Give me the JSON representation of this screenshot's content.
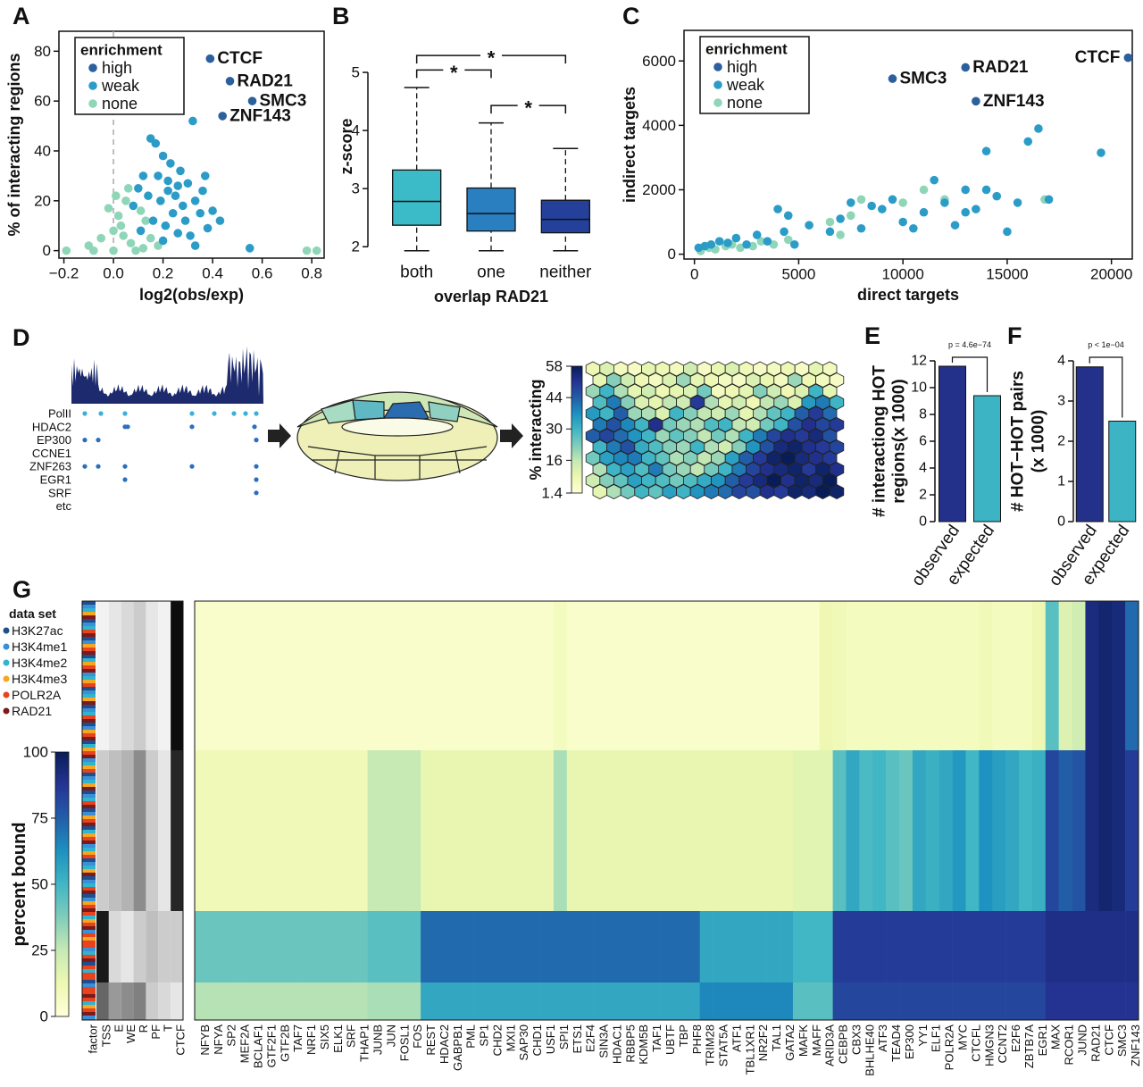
{
  "chart_data": [
    {
      "type": "scatter",
      "xlabel": "log2(obs/exp)",
      "ylabel": "% of interacting regions",
      "xlim": [
        -0.22,
        0.85
      ],
      "xticks": [
        {
          "value": -0.2,
          "label": "−0.2"
        },
        {
          "value": 0,
          "label": "0.0"
        },
        0.2,
        0.4,
        0.6,
        0.8
      ],
      "ylim": [
        -3,
        88
      ],
      "yticks": [
        0,
        20,
        40,
        60,
        80
      ],
      "reference_line_x": 0,
      "legend_title": "enrichment",
      "legend_position": "upper left",
      "series": [
        {
          "name": "high",
          "color": "#2c5f9e",
          "x": [
            0.39,
            0.47,
            0.56,
            0.44
          ],
          "values": [
            77,
            68,
            60,
            54
          ],
          "point_labels": [
            "CTCF",
            "RAD21",
            "SMC3",
            "ZNF143"
          ]
        },
        {
          "name": "weak",
          "color": "#2b9cc8",
          "x": [
            0.15,
            0.17,
            0.2,
            0.23,
            0.12,
            0.18,
            0.27,
            0.32,
            0.22,
            0.3,
            0.1,
            0.14,
            0.19,
            0.25,
            0.28,
            0.33,
            0.36,
            0.24,
            0.16,
            0.21,
            0.29,
            0.35,
            0.4,
            0.11,
            0.26,
            0.31,
            0.38,
            0.43,
            0.2,
            0.33,
            0.55,
            0.08,
            0.22,
            0.26,
            0.37
          ],
          "values": [
            45,
            43,
            38,
            35,
            30,
            30,
            32,
            52,
            28,
            27,
            25,
            22,
            20,
            22,
            18,
            20,
            24,
            15,
            12,
            10,
            12,
            15,
            16,
            8,
            7,
            6,
            9,
            12,
            4,
            2,
            1,
            18,
            24,
            26,
            30
          ]
        },
        {
          "name": "none",
          "color": "#8fd6b8",
          "x": [
            -0.19,
            -0.1,
            -0.05,
            0,
            0.02,
            0.05,
            -0.02,
            0.04,
            0.07,
            0.09,
            0.12,
            0.15,
            -0.08,
            0.03,
            0.06,
            0.01,
            0.11,
            0.18,
            0.78,
            0.82,
            0,
            0.13
          ],
          "values": [
            0,
            2,
            5,
            8,
            14,
            20,
            17,
            6,
            3,
            0,
            1,
            5,
            0,
            10,
            25,
            22,
            16,
            2,
            0,
            0,
            0,
            12
          ]
        }
      ]
    },
    {
      "type": "box",
      "xlabel": "overlap RAD21",
      "ylabel": "z-score",
      "categories": [
        "both",
        "one",
        "neither"
      ],
      "colors": [
        "#3bbac7",
        "#2a7fc0",
        "#24409a"
      ],
      "whisker_low": [
        1.93,
        1.93,
        1.93
      ],
      "q1": [
        2.37,
        2.27,
        2.24
      ],
      "median": [
        2.78,
        2.57,
        2.47
      ],
      "q3": [
        3.32,
        3.01,
        2.8
      ],
      "whisker_high": [
        4.74,
        4.13,
        3.69
      ],
      "ylim": [
        1.85,
        5.6
      ],
      "yticks": [
        2,
        3,
        4,
        5
      ],
      "significance": [
        {
          "pair": [
            0,
            1
          ],
          "label": "*"
        },
        {
          "pair": [
            1,
            2
          ],
          "label": "*"
        },
        {
          "pair": [
            0,
            2
          ],
          "label": "*"
        }
      ]
    },
    {
      "type": "scatter",
      "xlabel": "direct targets",
      "ylabel": "indirect targets",
      "xlim": [
        -500,
        21000
      ],
      "xticks": [
        0,
        5000,
        10000,
        15000,
        20000
      ],
      "ylim": [
        -150,
        6950
      ],
      "yticks": [
        0,
        2000,
        4000,
        6000
      ],
      "legend_title": "enrichment",
      "legend_position": "upper left",
      "series": [
        {
          "name": "high",
          "color": "#2c5f9e",
          "x": [
            20800,
            13000,
            9500,
            13500
          ],
          "values": [
            6100,
            5800,
            5450,
            4750
          ],
          "point_labels": [
            "CTCF",
            "RAD21",
            "SMC3",
            "ZNF143"
          ]
        },
        {
          "name": "weak",
          "color": "#2b9cc8",
          "x": [
            200,
            500,
            800,
            1200,
            1600,
            2000,
            2500,
            3000,
            3500,
            4000,
            4300,
            4500,
            4800,
            5500,
            6500,
            7000,
            7500,
            8000,
            8500,
            9000,
            9500,
            10000,
            10500,
            11000,
            11500,
            12000,
            12500,
            13000,
            13500,
            14000,
            14500,
            15000,
            15500,
            16000,
            16500,
            17000,
            14000,
            19500,
            13000
          ],
          "values": [
            200,
            250,
            300,
            400,
            350,
            500,
            300,
            600,
            400,
            1400,
            700,
            1200,
            300,
            900,
            700,
            1100,
            1600,
            800,
            1500,
            1400,
            1700,
            1000,
            800,
            1300,
            2300,
            1600,
            900,
            2000,
            1400,
            2000,
            1800,
            700,
            1600,
            3500,
            3900,
            1700,
            3200,
            3150,
            1300
          ]
        },
        {
          "name": "none",
          "color": "#8fd6b8",
          "x": [
            300,
            700,
            1000,
            1500,
            1800,
            2200,
            2800,
            3200,
            3800,
            4500,
            6500,
            7000,
            7500,
            10000,
            11000,
            12000,
            16800,
            8000
          ],
          "values": [
            100,
            200,
            150,
            250,
            300,
            200,
            250,
            400,
            300,
            450,
            1000,
            600,
            1200,
            1600,
            2000,
            1700,
            1700,
            1700
          ]
        }
      ]
    },
    {
      "type": "bar",
      "ylabel": [
        "# interactiong HOT",
        "regions(x 1000)"
      ],
      "categories": [
        "observed",
        "expected"
      ],
      "values": [
        11.6,
        9.4
      ],
      "colors": [
        "#23318a",
        "#3db4c3"
      ],
      "ylim": [
        0,
        12
      ],
      "yticks": [
        0,
        2,
        4,
        6,
        8,
        10,
        12
      ],
      "annotation": "p = 4.6e−74"
    },
    {
      "type": "bar",
      "ylabel": [
        "# HOT−HOT pairs",
        "(x 1000)"
      ],
      "categories": [
        "observed",
        "expected"
      ],
      "values": [
        3.85,
        2.5
      ],
      "colors": [
        "#23318a",
        "#3db4c3"
      ],
      "ylim": [
        0,
        4
      ],
      "yticks": [
        0,
        1,
        2,
        3,
        4
      ],
      "annotation": "p < 1e−04"
    }
  ],
  "panel_labels": [
    "A",
    "B",
    "C",
    "D",
    "E",
    "F",
    "G"
  ],
  "panel_d": {
    "track_labels": [
      "PolII",
      "HDAC2",
      "EP300",
      "CCNE1",
      "ZNF263",
      "EGR1",
      "SRF",
      "etc"
    ],
    "colorbar_label": "% interacting",
    "colorbar_lim": [
      1.4,
      58
    ],
    "colorbar_ticks": [
      58,
      44,
      30,
      16,
      1.4
    ],
    "som_values": [
      [
        8,
        12,
        6,
        5,
        10,
        8,
        6,
        14,
        5,
        9,
        12,
        7,
        5,
        6,
        8,
        5,
        10,
        6
      ],
      [
        10,
        22,
        14,
        8,
        6,
        12,
        20,
        10,
        8,
        6,
        5,
        12,
        9,
        6,
        20,
        8,
        6,
        5
      ],
      [
        20,
        30,
        18,
        10,
        14,
        8,
        10,
        12,
        24,
        6,
        8,
        10,
        22,
        14,
        8,
        12,
        30,
        10
      ],
      [
        28,
        40,
        22,
        12,
        10,
        16,
        14,
        50,
        18,
        10,
        14,
        8,
        16,
        20,
        12,
        35,
        40,
        30
      ],
      [
        35,
        30,
        44,
        20,
        18,
        12,
        30,
        22,
        16,
        14,
        20,
        10,
        18,
        26,
        30,
        44,
        50,
        42
      ],
      [
        40,
        46,
        38,
        30,
        52,
        24,
        20,
        18,
        28,
        30,
        16,
        14,
        24,
        30,
        46,
        52,
        48,
        50
      ],
      [
        44,
        48,
        42,
        36,
        30,
        20,
        26,
        22,
        16,
        24,
        18,
        30,
        40,
        48,
        52,
        50,
        54,
        46
      ],
      [
        30,
        40,
        46,
        32,
        28,
        22,
        20,
        30,
        18,
        14,
        22,
        36,
        46,
        54,
        56,
        52,
        50,
        48
      ],
      [
        24,
        34,
        38,
        40,
        30,
        26,
        18,
        22,
        16,
        20,
        34,
        44,
        50,
        56,
        58,
        54,
        52,
        50
      ],
      [
        18,
        30,
        34,
        28,
        40,
        24,
        20,
        16,
        24,
        30,
        40,
        48,
        52,
        54,
        56,
        50,
        56,
        52
      ],
      [
        14,
        22,
        26,
        34,
        30,
        28,
        24,
        28,
        32,
        36,
        44,
        50,
        54,
        58,
        52,
        56,
        54,
        58
      ],
      [
        10,
        18,
        24,
        30,
        26,
        34,
        30,
        36,
        40,
        42,
        48,
        46,
        52,
        50,
        56,
        54,
        58,
        56
      ]
    ]
  },
  "panel_g": {
    "legend_title": "data set",
    "legend": [
      {
        "name": "H3K27ac",
        "color": "#1f4e8c"
      },
      {
        "name": "H3K4me1",
        "color": "#3a8fd6"
      },
      {
        "name": "H3K4me2",
        "color": "#30b5d0"
      },
      {
        "name": "H3K4me3",
        "color": "#f5a623"
      },
      {
        "name": "POLR2A",
        "color": "#e8431c"
      },
      {
        "name": "RAD21",
        "color": "#7a1a1a"
      }
    ],
    "colorbar_label": "percent bound",
    "colorbar_lim": [
      0,
      100
    ],
    "colorbar_ticks": [
      0,
      25,
      50,
      75,
      100
    ],
    "factor_label": "factor",
    "reference_columns": [
      {
        "name": "TSS",
        "values": [
          5,
          20,
          90,
          60
        ]
      },
      {
        "name": "E",
        "values": [
          10,
          25,
          15,
          40
        ]
      },
      {
        "name": "WE",
        "values": [
          15,
          30,
          10,
          45
        ]
      },
      {
        "name": "R",
        "values": [
          20,
          45,
          20,
          50
        ]
      },
      {
        "name": "PF",
        "values": [
          10,
          20,
          25,
          20
        ]
      },
      {
        "name": "T",
        "values": [
          5,
          10,
          20,
          15
        ]
      },
      {
        "name": "CTCF",
        "values": [
          95,
          85,
          20,
          10
        ]
      }
    ],
    "columns": [
      "NFYB",
      "NFYA",
      "SP2",
      "MEF2A",
      "BCLAF1",
      "GTF2F1",
      "GTF2B",
      "TAF7",
      "NRF1",
      "SIX5",
      "ELK1",
      "SRF",
      "THAP1",
      "JUNB",
      "JUN",
      "FOSL1",
      "FOS",
      "REST",
      "HDAC2",
      "GABPB1",
      "PML",
      "SP1",
      "CHD2",
      "MXI1",
      "SAP30",
      "CHD1",
      "USF1",
      "SPI1",
      "ETS1",
      "E2F4",
      "SIN3A",
      "HDAC1",
      "RBBP5",
      "KDM5B",
      "TAF1",
      "UBTF",
      "TBP",
      "PHF8",
      "TRIM28",
      "STAT5A",
      "ATF1",
      "TBL1XR1",
      "NR2F2",
      "TAL1",
      "GATA2",
      "MAFK",
      "MAFF",
      "ARID3A",
      "CEBPB",
      "CBX3",
      "BHLHE40",
      "ATF3",
      "TEAD4",
      "EP300",
      "YY1",
      "ELF1",
      "POLR2A",
      "MYC",
      "CTCFL",
      "HMGN3",
      "CCNT2",
      "E2F6",
      "ZBTB7A",
      "EGR1",
      "MAX",
      "RCOR1",
      "JUND",
      "RAD21",
      "CTCF",
      "SMC3",
      "ZNF143"
    ],
    "bands": [
      [
        4,
        4,
        4,
        4,
        4,
        4,
        4,
        4,
        4,
        4,
        4,
        4,
        4,
        4,
        4,
        4,
        4,
        4,
        4,
        4,
        4,
        4,
        4,
        4,
        4,
        4,
        4,
        8,
        4,
        4,
        4,
        4,
        4,
        4,
        4,
        4,
        4,
        4,
        4,
        4,
        4,
        4,
        4,
        4,
        4,
        4,
        4,
        12,
        10,
        8,
        8,
        8,
        8,
        8,
        8,
        8,
        8,
        8,
        8,
        10,
        8,
        8,
        8,
        12,
        45,
        18,
        22,
        92,
        95,
        93,
        72
      ],
      [
        10,
        10,
        10,
        10,
        10,
        10,
        10,
        10,
        10,
        10,
        10,
        10,
        10,
        25,
        25,
        25,
        25,
        14,
        14,
        14,
        14,
        14,
        14,
        14,
        14,
        14,
        14,
        30,
        14,
        14,
        14,
        14,
        14,
        14,
        14,
        14,
        14,
        14,
        14,
        14,
        14,
        14,
        14,
        14,
        14,
        16,
        16,
        16,
        45,
        55,
        48,
        50,
        45,
        42,
        55,
        52,
        55,
        60,
        50,
        62,
        58,
        55,
        50,
        52,
        82,
        75,
        78,
        92,
        95,
        93,
        85
      ],
      [
        42,
        42,
        42,
        42,
        42,
        42,
        42,
        42,
        42,
        42,
        42,
        42,
        42,
        45,
        45,
        45,
        45,
        72,
        72,
        72,
        72,
        72,
        72,
        72,
        72,
        72,
        72,
        72,
        72,
        72,
        72,
        72,
        72,
        72,
        72,
        72,
        72,
        72,
        55,
        55,
        55,
        55,
        55,
        55,
        55,
        50,
        50,
        50,
        85,
        85,
        85,
        85,
        85,
        85,
        85,
        85,
        85,
        85,
        85,
        85,
        85,
        85,
        85,
        85,
        90,
        90,
        90,
        90,
        90,
        90,
        90
      ],
      [
        28,
        28,
        28,
        28,
        28,
        28,
        28,
        28,
        28,
        28,
        28,
        28,
        28,
        30,
        30,
        30,
        30,
        55,
        55,
        55,
        55,
        55,
        55,
        55,
        55,
        55,
        55,
        55,
        55,
        55,
        55,
        55,
        55,
        55,
        55,
        55,
        55,
        55,
        65,
        65,
        65,
        65,
        65,
        65,
        65,
        45,
        45,
        45,
        82,
        82,
        82,
        82,
        82,
        82,
        82,
        82,
        82,
        82,
        82,
        82,
        82,
        82,
        82,
        82,
        88,
        88,
        88,
        88,
        88,
        88,
        88
      ]
    ]
  }
}
